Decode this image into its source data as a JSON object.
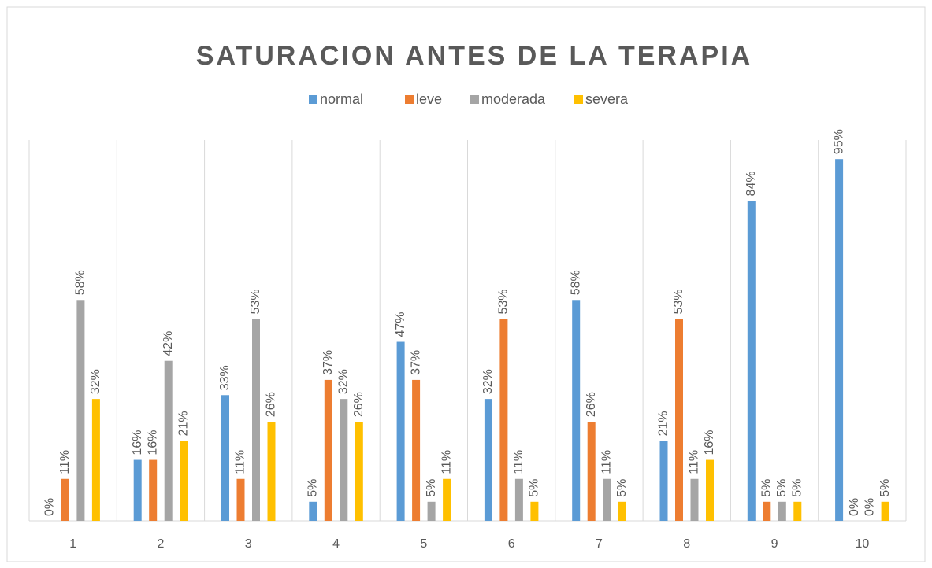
{
  "chart_data": {
    "type": "bar",
    "title": "SATURACION ANTES DE LA TERAPIA",
    "categories": [
      "1",
      "2",
      "3",
      "4",
      "5",
      "6",
      "7",
      "8",
      "9",
      "10"
    ],
    "ylim": [
      0,
      100
    ],
    "series": [
      {
        "name": "normal",
        "color": "#5b9bd5",
        "values": [
          0,
          16,
          33,
          5,
          47,
          32,
          58,
          21,
          84,
          95
        ],
        "value_labels": [
          "0%",
          "16%",
          "33%",
          "5%",
          "47%",
          "32%",
          "58%",
          "21%",
          "84%",
          "95%"
        ]
      },
      {
        "name": "leve",
        "color": "#ed7d31",
        "values": [
          11,
          16,
          11,
          37,
          37,
          53,
          26,
          53,
          5,
          0
        ],
        "value_labels": [
          "11%",
          "16%",
          "11%",
          "37%",
          "37%",
          "53%",
          "26%",
          "53%",
          "5%",
          "0%"
        ]
      },
      {
        "name": "moderada",
        "color": "#a5a5a5",
        "values": [
          58,
          42,
          53,
          32,
          5,
          11,
          11,
          11,
          5,
          0
        ],
        "value_labels": [
          "58%",
          "42%",
          "53%",
          "32%",
          "5%",
          "11%",
          "11%",
          "11%",
          "5%",
          "0%"
        ]
      },
      {
        "name": "severa",
        "color": "#ffc000",
        "values": [
          32,
          21,
          26,
          26,
          11,
          5,
          5,
          16,
          5,
          5
        ],
        "value_labels": [
          "32%",
          "21%",
          "26%",
          "26%",
          "11%",
          "5%",
          "5%",
          "16%",
          "5%",
          "5%"
        ]
      }
    ]
  }
}
